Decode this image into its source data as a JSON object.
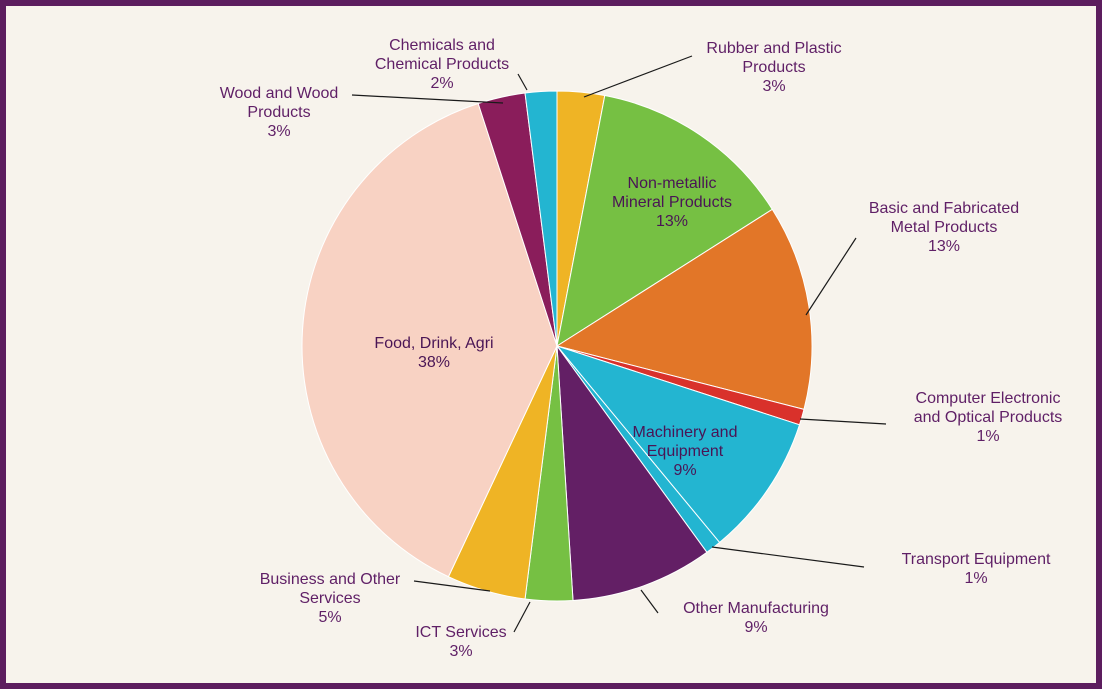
{
  "chart_data": {
    "type": "pie",
    "title": "",
    "start_angle_deg": 0,
    "direction": "clockwise",
    "slices": [
      {
        "label": [
          "Rubber and Plastic",
          "Products"
        ],
        "value": 3,
        "display": "3%",
        "color": "#efb425"
      },
      {
        "label": [
          "Non-metallic",
          "Mineral Products"
        ],
        "value": 13,
        "display": "13%",
        "color": "#76c043"
      },
      {
        "label": [
          "Basic and Fabricated",
          "Metal Products"
        ],
        "value": 13,
        "display": "13%",
        "color": "#e27628"
      },
      {
        "label": [
          "Computer Electronic",
          "and Optical Products"
        ],
        "value": 1,
        "display": "1%",
        "color": "#d9312b"
      },
      {
        "label": [
          "Machinery and",
          "Equipment"
        ],
        "value": 9,
        "display": "9%",
        "color": "#23b5d1"
      },
      {
        "label": [
          "Transport Equipment"
        ],
        "value": 1,
        "display": "1%",
        "color": "#23b5d1"
      },
      {
        "label": [
          "Other Manufacturing"
        ],
        "value": 9,
        "display": "9%",
        "color": "#631f65"
      },
      {
        "label": [
          "ICT Services"
        ],
        "value": 3,
        "display": "3%",
        "color": "#76c043"
      },
      {
        "label": [
          "Business and Other",
          "Services"
        ],
        "value": 5,
        "display": "5%",
        "color": "#efb425"
      },
      {
        "label": [
          "Food, Drink, Agri"
        ],
        "value": 38,
        "display": "38%",
        "color": "#f8d2c3"
      },
      {
        "label": [
          "Wood and Wood",
          "Products"
        ],
        "value": 3,
        "display": "3%",
        "color": "#8a1d5b"
      },
      {
        "label": [
          "Chemicals and",
          "Chemical Products"
        ],
        "value": 2,
        "display": "2%",
        "color": "#23b5d1"
      }
    ]
  }
}
